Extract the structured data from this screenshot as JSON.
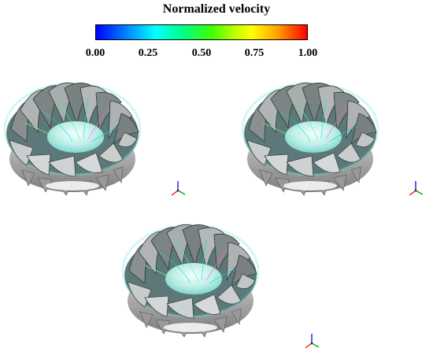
{
  "colorbar": {
    "title": "Normalized velocity",
    "min": 0.0,
    "max": 1.0,
    "ticks": [
      "0.00",
      "0.25",
      "0.50",
      "0.75",
      "1.00"
    ],
    "colors": [
      "#0000ff",
      "#00ffff",
      "#00ff00",
      "#ffff00",
      "#ff0000"
    ]
  },
  "panels": [
    {
      "name": "runner-top-left",
      "blades": 15
    },
    {
      "name": "runner-top-right",
      "blades": 15
    },
    {
      "name": "runner-bottom-center",
      "blades": 15
    }
  ],
  "axis_triad": {
    "x_color": "#ff0000",
    "y_color": "#00aa00",
    "z_color": "#0000ff"
  }
}
